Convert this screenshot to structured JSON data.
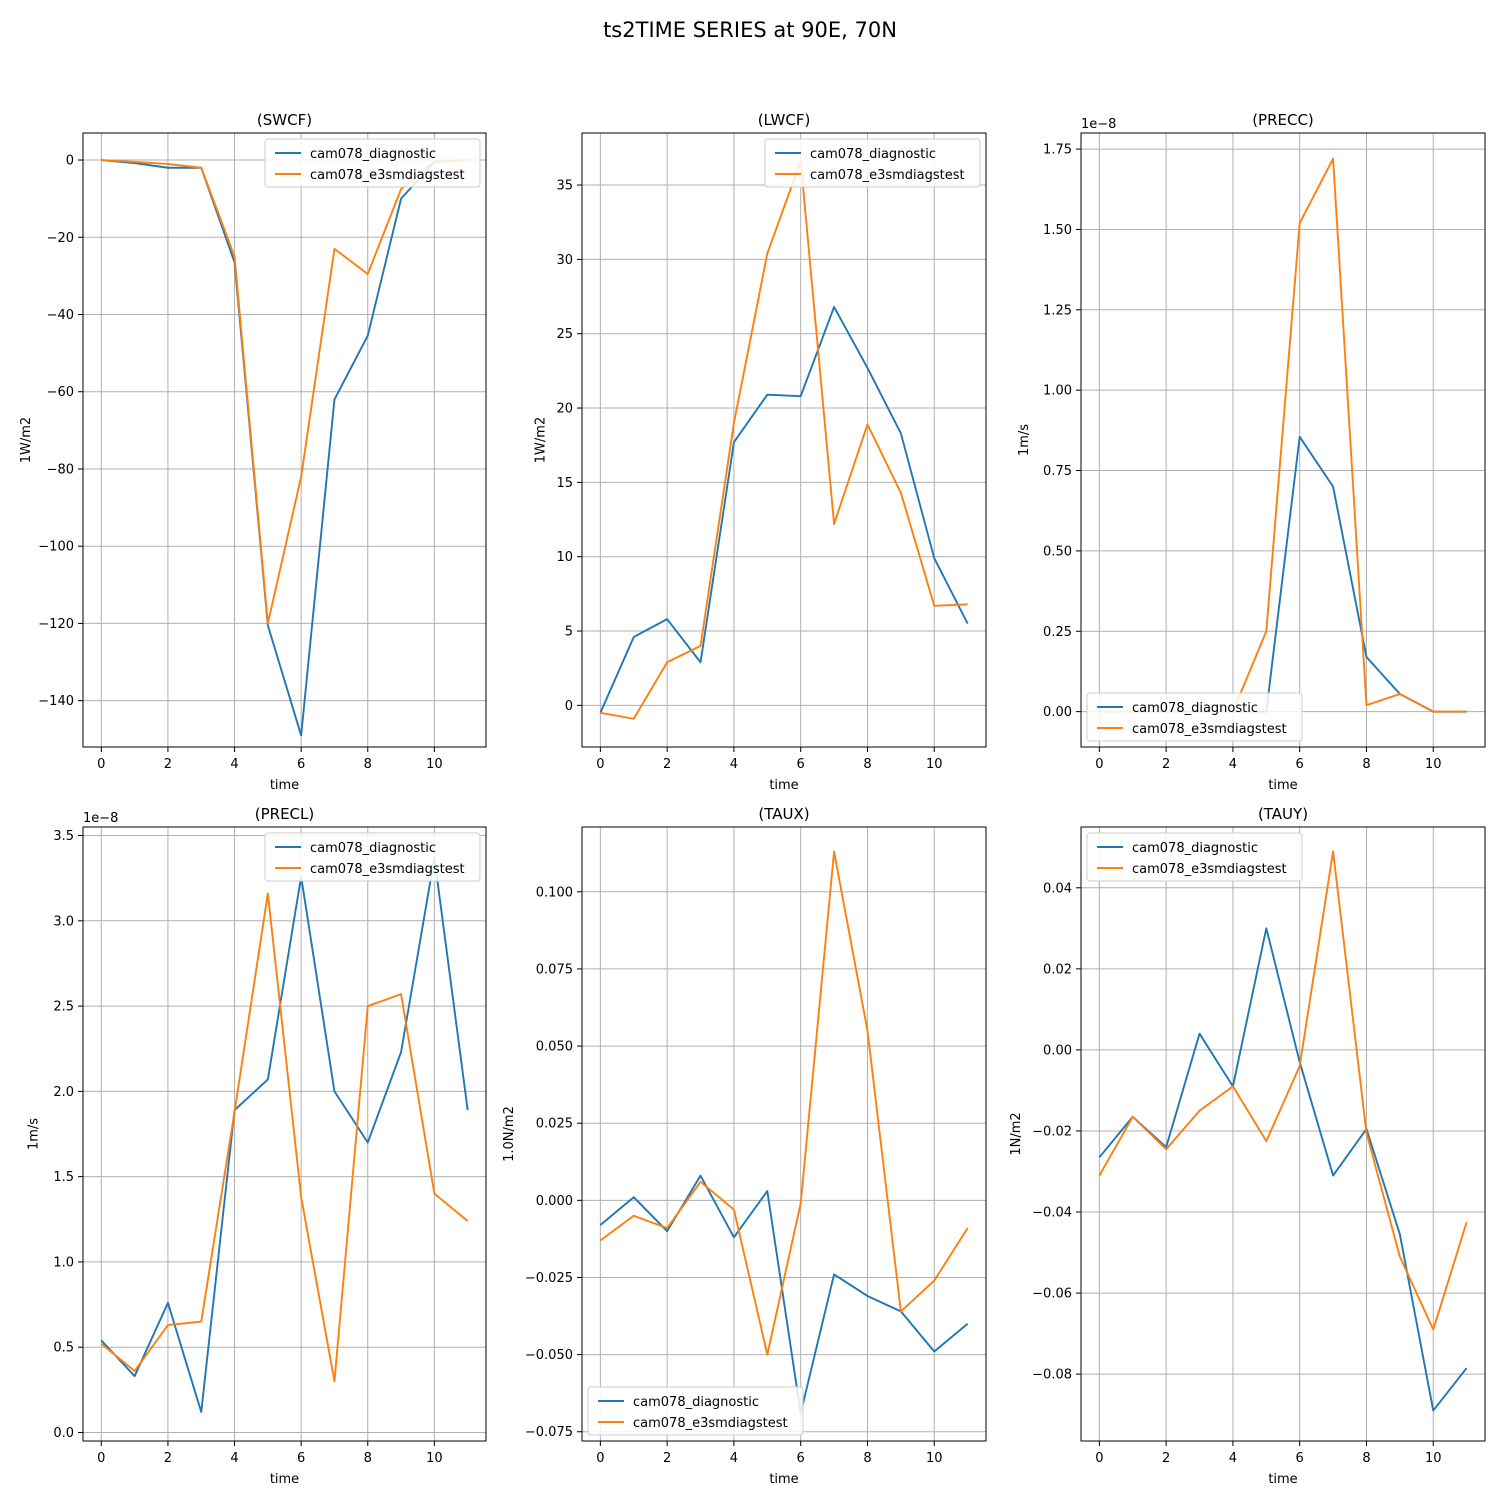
{
  "figure": {
    "suptitle": "ts2TIME SERIES at 90E, 70N"
  },
  "colors": {
    "series1": "#1f77b4",
    "series2": "#ff7f0e",
    "grid": "#b0b0b0",
    "axes": "#000000"
  },
  "chart_data": [
    {
      "type": "line",
      "title": "(SWCF)",
      "xlabel": "time",
      "ylabel": "1W/m2",
      "x": [
        0,
        1,
        2,
        3,
        4,
        5,
        6,
        7,
        8,
        9,
        10,
        11
      ],
      "xlim": [
        -0.55,
        11.55
      ],
      "ylim": [
        7,
        -152
      ],
      "xticks": [
        0,
        2,
        4,
        6,
        8,
        10
      ],
      "yticks": [
        -140,
        -120,
        -100,
        -80,
        -60,
        -40,
        -20,
        0
      ],
      "ytick_labels": [
        "−140",
        "−120",
        "−100",
        "−80",
        "−60",
        "−40",
        "−20",
        "0"
      ],
      "offset_text": "",
      "grid": true,
      "legend": "upper right",
      "series": [
        {
          "name": "cam078_diagnostic",
          "values": [
            0,
            -0.8,
            -2,
            -2,
            -26.5,
            -120.5,
            -149,
            -62,
            -45.5,
            -10,
            -0.5,
            0
          ]
        },
        {
          "name": "cam078_e3smdiagstest",
          "values": [
            0,
            -0.5,
            -1,
            -2,
            -25,
            -120,
            -82,
            -23,
            -29.5,
            -7.5,
            -0.3,
            0
          ]
        }
      ]
    },
    {
      "type": "line",
      "title": "(LWCF)",
      "xlabel": "time",
      "ylabel": "1W/m2",
      "x": [
        0,
        1,
        2,
        3,
        4,
        5,
        6,
        7,
        8,
        9,
        10,
        11
      ],
      "xlim": [
        -0.55,
        11.55
      ],
      "ylim": [
        38.5,
        -2.8
      ],
      "xticks": [
        0,
        2,
        4,
        6,
        8,
        10
      ],
      "yticks": [
        0,
        5,
        10,
        15,
        20,
        25,
        30,
        35
      ],
      "ytick_labels": [
        "0",
        "5",
        "10",
        "15",
        "20",
        "25",
        "30",
        "35"
      ],
      "offset_text": "",
      "grid": true,
      "legend": "upper right",
      "series": [
        {
          "name": "cam078_diagnostic",
          "values": [
            -0.5,
            4.6,
            5.8,
            2.9,
            17.7,
            20.9,
            20.8,
            26.8,
            22.7,
            18.3,
            9.9,
            5.5
          ]
        },
        {
          "name": "cam078_e3smdiagstest",
          "values": [
            -0.5,
            -0.9,
            2.9,
            4,
            19,
            30.4,
            36.6,
            12.2,
            18.9,
            14.3,
            6.7,
            6.8
          ]
        }
      ]
    },
    {
      "type": "line",
      "title": "(PRECC)",
      "xlabel": "time",
      "ylabel": "1m/s",
      "x": [
        0,
        1,
        2,
        3,
        4,
        5,
        6,
        7,
        8,
        9,
        10,
        11
      ],
      "xlim": [
        -0.55,
        11.55
      ],
      "ylim": [
        1.8,
        -0.11
      ],
      "xticks": [
        0,
        2,
        4,
        6,
        8,
        10
      ],
      "yticks": [
        0,
        0.25,
        0.5,
        0.75,
        1.0,
        1.25,
        1.5,
        1.75
      ],
      "ytick_labels": [
        "0.00",
        "0.25",
        "0.50",
        "0.75",
        "1.00",
        "1.25",
        "1.50",
        "1.75"
      ],
      "offset_text": "1e−8",
      "grid": true,
      "legend": "lower left",
      "series": [
        {
          "name": "cam078_diagnostic",
          "values": [
            0,
            0,
            0,
            0,
            0,
            0,
            0.855,
            0.7,
            0.17,
            0.055,
            0,
            0
          ]
        },
        {
          "name": "cam078_e3smdiagstest",
          "values": [
            0,
            0,
            0,
            0,
            0,
            0.25,
            1.52,
            1.72,
            0.02,
            0.055,
            0,
            0
          ]
        }
      ]
    },
    {
      "type": "line",
      "title": "(PRECL)",
      "xlabel": "time",
      "ylabel": "1m/s",
      "x": [
        0,
        1,
        2,
        3,
        4,
        5,
        6,
        7,
        8,
        9,
        10,
        11
      ],
      "xlim": [
        -0.55,
        11.55
      ],
      "ylim": [
        3.55,
        -0.05
      ],
      "xticks": [
        0,
        2,
        4,
        6,
        8,
        10
      ],
      "yticks": [
        0,
        0.5,
        1.0,
        1.5,
        2.0,
        2.5,
        3.0,
        3.5
      ],
      "ytick_labels": [
        "0.0",
        "0.5",
        "1.0",
        "1.5",
        "2.0",
        "2.5",
        "3.0",
        "3.5"
      ],
      "offset_text": "1e−8",
      "grid": true,
      "legend": "upper right",
      "series": [
        {
          "name": "cam078_diagnostic",
          "values": [
            0.54,
            0.33,
            0.76,
            0.12,
            1.89,
            2.07,
            3.26,
            2.0,
            1.7,
            2.23,
            3.37,
            1.89
          ]
        },
        {
          "name": "cam078_e3smdiagstest",
          "values": [
            0.52,
            0.36,
            0.63,
            0.65,
            1.88,
            3.16,
            1.38,
            0.3,
            2.5,
            2.57,
            1.4,
            1.24
          ]
        }
      ]
    },
    {
      "type": "line",
      "title": "(TAUX)",
      "xlabel": "time",
      "ylabel": "1.0N/m2",
      "x": [
        0,
        1,
        2,
        3,
        4,
        5,
        6,
        7,
        8,
        9,
        10,
        11
      ],
      "xlim": [
        -0.55,
        11.55
      ],
      "ylim": [
        0.121,
        -0.078
      ],
      "xticks": [
        0,
        2,
        4,
        6,
        8,
        10
      ],
      "yticks": [
        -0.075,
        -0.05,
        -0.025,
        0,
        0.025,
        0.05,
        0.075,
        0.1
      ],
      "ytick_labels": [
        "−0.075",
        "−0.050",
        "−0.025",
        "0.000",
        "0.025",
        "0.050",
        "0.075",
        "0.100"
      ],
      "offset_text": "",
      "grid": true,
      "legend": "lower left",
      "series": [
        {
          "name": "cam078_diagnostic",
          "values": [
            -0.008,
            0.001,
            -0.01,
            0.008,
            -0.012,
            0.003,
            -0.069,
            -0.024,
            -0.031,
            -0.036,
            -0.049,
            -0.04
          ]
        },
        {
          "name": "cam078_e3smdiagstest",
          "values": [
            -0.013,
            -0.005,
            -0.009,
            0.006,
            -0.003,
            -0.05,
            -0.001,
            0.113,
            0.055,
            -0.036,
            -0.026,
            -0.009
          ]
        }
      ]
    },
    {
      "type": "line",
      "title": "(TAUY)",
      "xlabel": "time",
      "ylabel": "1N/m2",
      "x": [
        0,
        1,
        2,
        3,
        4,
        5,
        6,
        7,
        8,
        9,
        10,
        11
      ],
      "xlim": [
        -0.55,
        11.55
      ],
      "ylim": [
        0.055,
        -0.0965
      ],
      "xticks": [
        0,
        2,
        4,
        6,
        8,
        10
      ],
      "yticks": [
        -0.08,
        -0.06,
        -0.04,
        -0.02,
        0,
        0.02,
        0.04
      ],
      "ytick_labels": [
        "−0.08",
        "−0.06",
        "−0.04",
        "−0.02",
        "0.00",
        "0.02",
        "0.04"
      ],
      "offset_text": "",
      "grid": true,
      "legend": "upper left",
      "series": [
        {
          "name": "cam078_diagnostic",
          "values": [
            -0.0265,
            -0.0165,
            -0.024,
            0.004,
            -0.009,
            0.03,
            -0.003,
            -0.031,
            -0.0195,
            -0.0455,
            -0.089,
            -0.0785
          ]
        },
        {
          "name": "cam078_e3smdiagstest",
          "values": [
            -0.031,
            -0.0165,
            -0.0245,
            -0.015,
            -0.009,
            -0.0225,
            -0.004,
            0.049,
            -0.0205,
            -0.051,
            -0.069,
            -0.0425
          ]
        }
      ]
    }
  ]
}
